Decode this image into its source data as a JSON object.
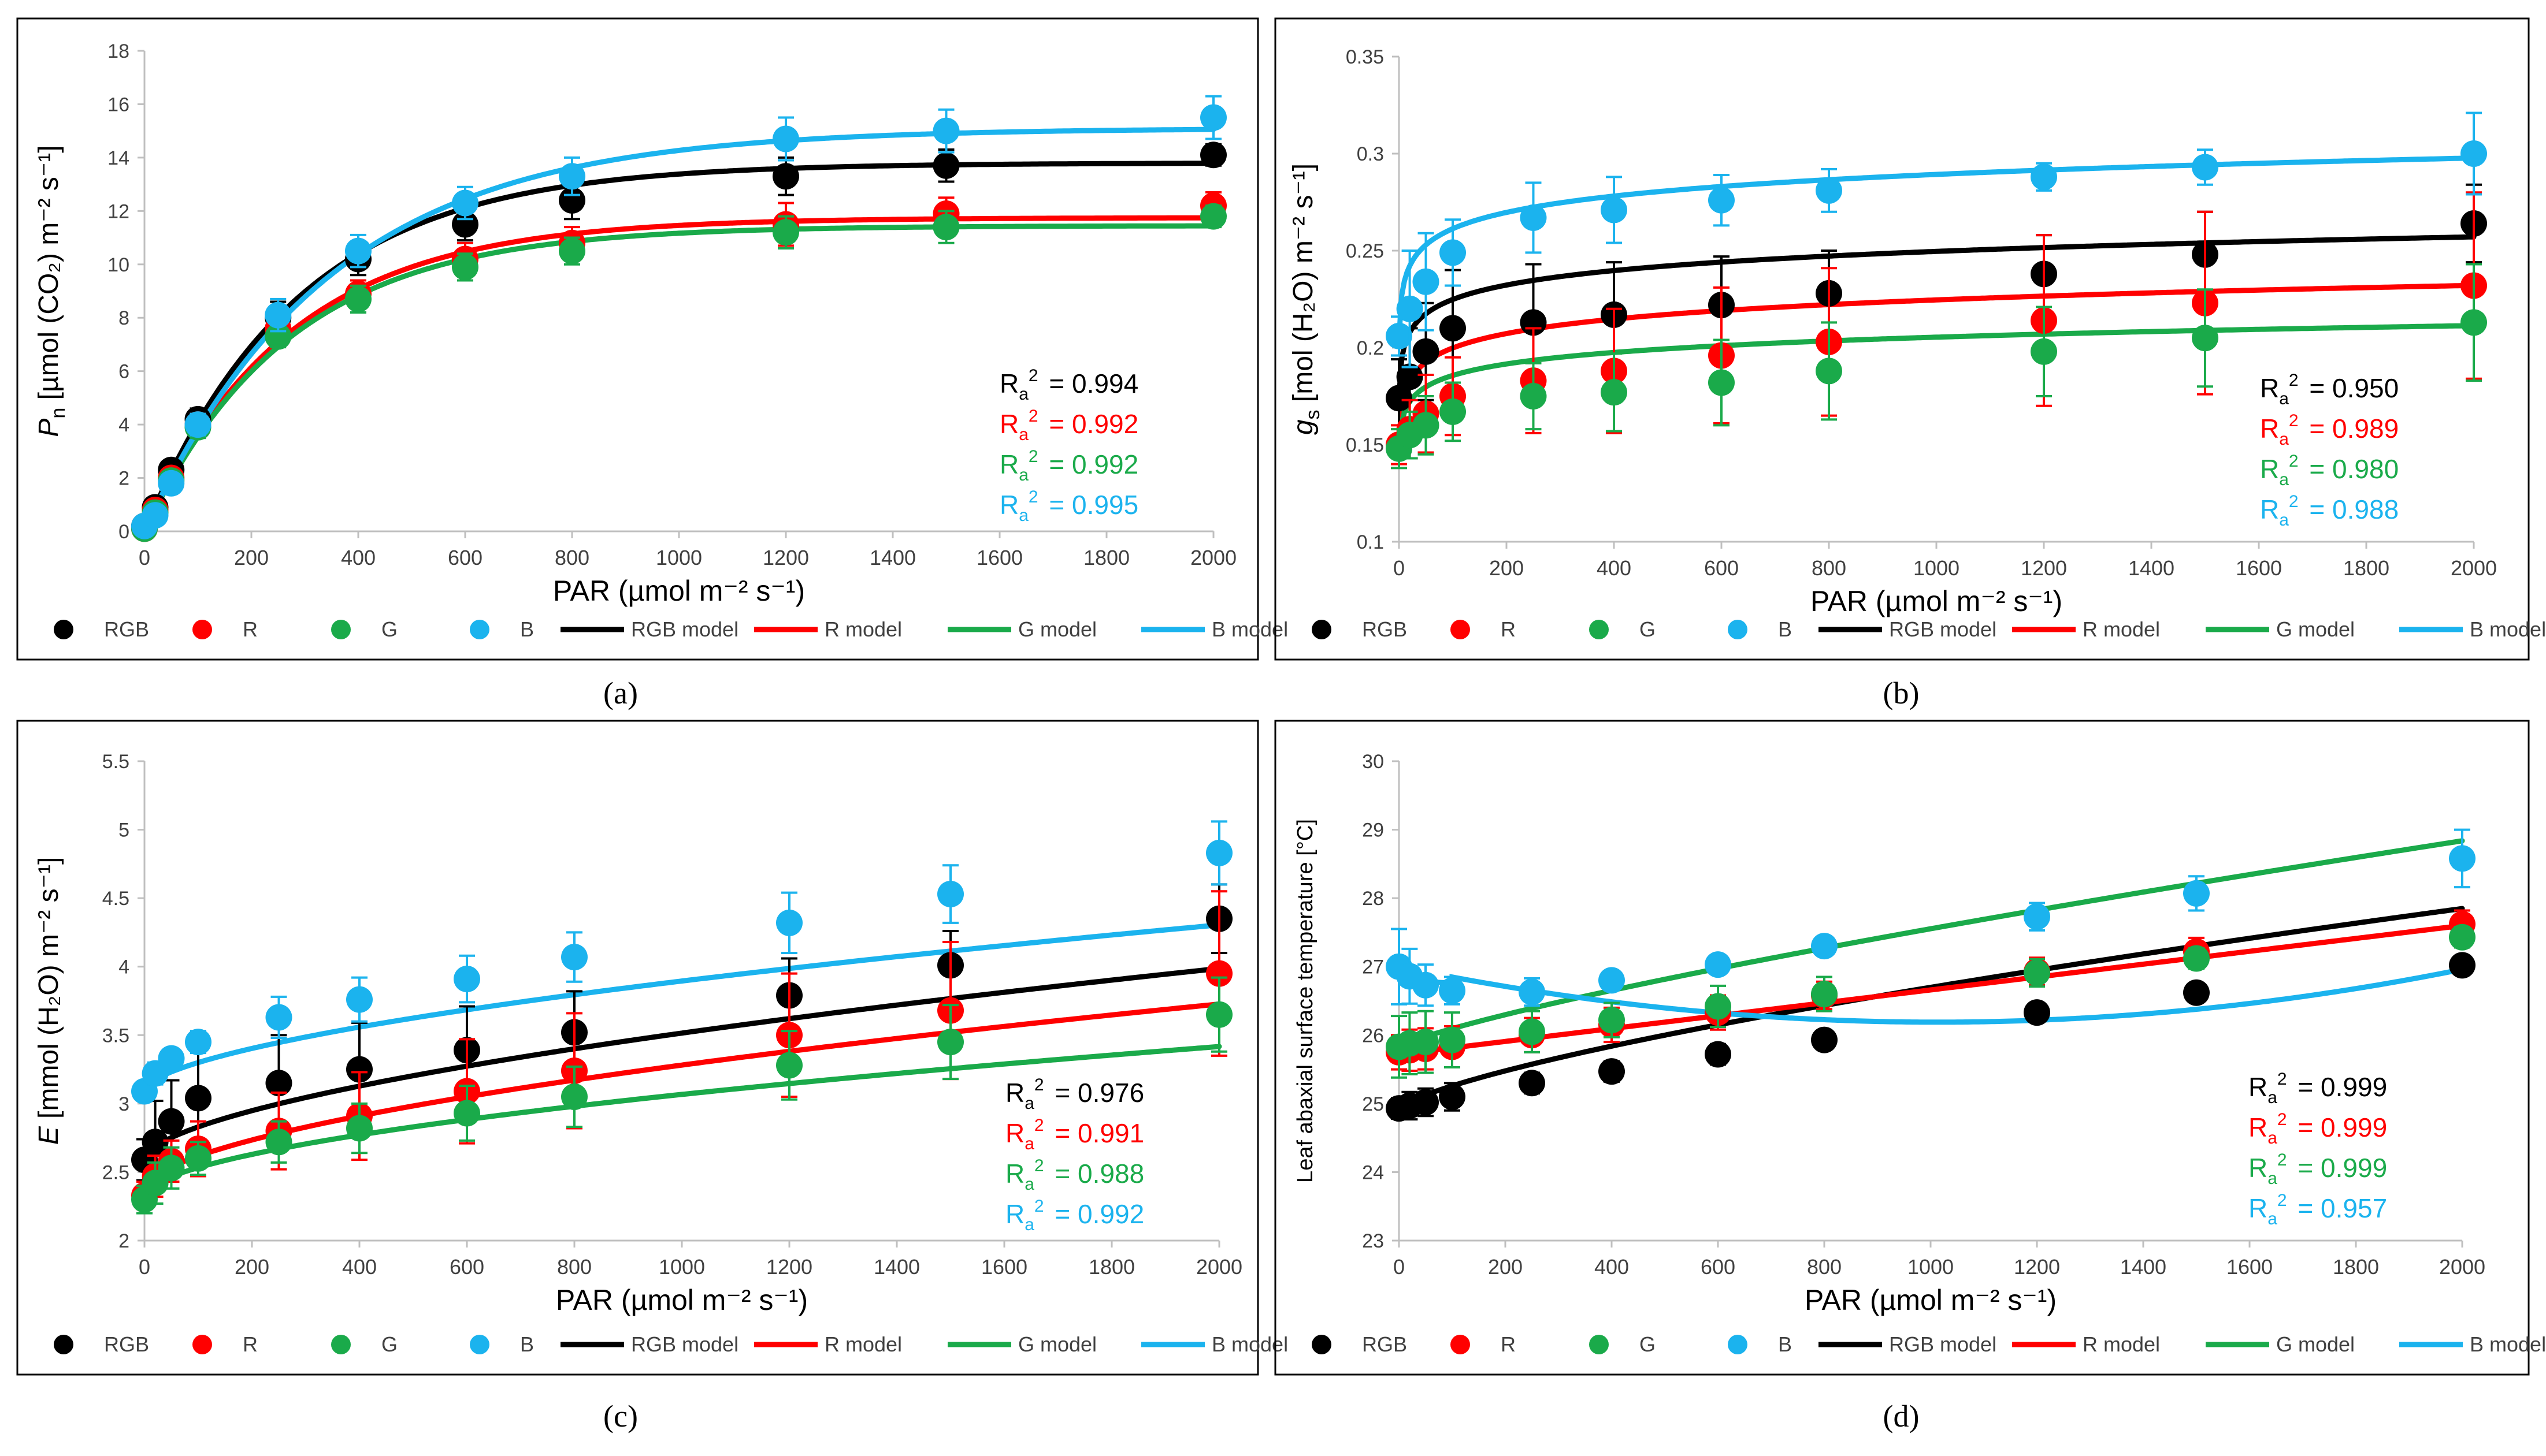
{
  "colors": {
    "RGB": "#000000",
    "R": "#ff0000",
    "G": "#1aaa4a",
    "B": "#1bb3ee"
  },
  "xlabel": "PAR (µmol m⁻² s⁻¹)",
  "legend": {
    "points": [
      "RGB",
      "R",
      "G",
      "B"
    ],
    "models": [
      "RGB model",
      "R model",
      "G model",
      "B model"
    ]
  },
  "chart_data": [
    {
      "type": "scatter",
      "panel_label": "(a)",
      "ylabel_var": "P",
      "ylabel_sub": "n",
      "ylabel_unit": "[µmol (CO₂) m⁻² s⁻¹]",
      "xlim": [
        0,
        2000
      ],
      "xticks": [
        0,
        200,
        400,
        600,
        800,
        1000,
        1200,
        1400,
        1600,
        1800,
        2000
      ],
      "ylim": [
        0,
        18
      ],
      "yticks": [
        "0",
        "2",
        "4",
        "6",
        "8",
        "10",
        "12",
        "14",
        "16",
        "18"
      ],
      "x": [
        0,
        20,
        50,
        100,
        250,
        400,
        600,
        800,
        1200,
        1500,
        2000
      ],
      "series": [
        {
          "name": "RGB",
          "y": [
            0.2,
            0.9,
            2.3,
            4.2,
            8.0,
            10.2,
            11.5,
            12.4,
            13.3,
            13.7,
            14.1
          ],
          "err": [
            0.2,
            0.3,
            0.3,
            0.4,
            0.6,
            0.6,
            0.6,
            0.7,
            0.7,
            0.6,
            0.4
          ],
          "model": {
            "kind": "exp",
            "a": 13.8,
            "k": 0.0035,
            "c": 13.8
          }
        },
        {
          "name": "R",
          "y": [
            0.1,
            0.8,
            2.0,
            4.0,
            7.6,
            8.9,
            10.2,
            10.8,
            11.5,
            11.9,
            12.2
          ],
          "err": [
            0.2,
            0.3,
            0.3,
            0.4,
            0.5,
            0.5,
            0.6,
            0.6,
            0.8,
            0.6,
            0.5
          ],
          "model": {
            "kind": "exp",
            "a": 11.75,
            "k": 0.0037,
            "c": 11.75
          }
        },
        {
          "name": "G",
          "y": [
            0.1,
            0.7,
            1.9,
            3.9,
            7.3,
            8.7,
            9.9,
            10.5,
            11.2,
            11.4,
            11.8
          ],
          "err": [
            0.2,
            0.3,
            0.3,
            0.4,
            0.4,
            0.5,
            0.5,
            0.5,
            0.6,
            0.6,
            0.4
          ],
          "model": {
            "kind": "exp",
            "a": 11.45,
            "k": 0.0037,
            "c": 11.45
          }
        },
        {
          "name": "B",
          "y": [
            0.2,
            0.6,
            1.8,
            4.0,
            8.1,
            10.5,
            12.3,
            13.3,
            14.7,
            15.0,
            15.5
          ],
          "err": [
            0.2,
            0.3,
            0.3,
            0.4,
            0.6,
            0.6,
            0.6,
            0.7,
            0.8,
            0.8,
            0.8
          ],
          "model": {
            "kind": "exp",
            "a": 15.1,
            "k": 0.0029,
            "c": 15.1
          }
        }
      ],
      "r2_prefix": "R",
      "r2_sub": "a",
      "r2_sup": "2",
      "r2": [
        "= 0.994",
        "= 0.992",
        "= 0.992",
        "= 0.995"
      ]
    },
    {
      "type": "scatter",
      "panel_label": "(b)",
      "ylabel_var": "g",
      "ylabel_sub": "s",
      "ylabel_unit": "[mol (H₂O) m⁻² s⁻¹]",
      "xlim": [
        0,
        2000
      ],
      "xticks": [
        0,
        200,
        400,
        600,
        800,
        1000,
        1200,
        1400,
        1600,
        1800,
        2000
      ],
      "ylim": [
        0.1,
        0.35
      ],
      "yticks": [
        "0.1",
        "0.15",
        "0.2",
        "0.25",
        "0.3",
        "0.35"
      ],
      "x": [
        0,
        20,
        50,
        100,
        250,
        400,
        600,
        800,
        1200,
        1500,
        2000
      ],
      "series": [
        {
          "name": "RGB",
          "y": [
            0.174,
            0.185,
            0.198,
            0.21,
            0.213,
            0.217,
            0.222,
            0.228,
            0.238,
            0.248,
            0.264
          ],
          "err": [
            0.02,
            0.025,
            0.025,
            0.03,
            0.03,
            0.027,
            0.025,
            0.022,
            0.02,
            0.022,
            0.02
          ],
          "model": {
            "kind": "log",
            "a": 0.175,
            "b": 0.0108,
            "s": 1
          }
        },
        {
          "name": "R",
          "y": [
            0.15,
            0.158,
            0.166,
            0.175,
            0.183,
            0.188,
            0.196,
            0.203,
            0.214,
            0.223,
            0.232
          ],
          "err": [
            0.01,
            0.015,
            0.02,
            0.02,
            0.027,
            0.032,
            0.035,
            0.038,
            0.044,
            0.047,
            0.048
          ],
          "model": {
            "kind": "log",
            "a": 0.15,
            "b": 0.0108,
            "s": 1
          }
        },
        {
          "name": "G",
          "y": [
            0.148,
            0.155,
            0.16,
            0.167,
            0.175,
            0.177,
            0.182,
            0.188,
            0.198,
            0.205,
            0.213
          ],
          "err": [
            0.01,
            0.012,
            0.015,
            0.015,
            0.017,
            0.02,
            0.022,
            0.025,
            0.023,
            0.025,
            0.03
          ],
          "model": {
            "kind": "log",
            "a": 0.146,
            "b": 0.0086,
            "s": 1
          }
        },
        {
          "name": "B",
          "y": [
            0.206,
            0.22,
            0.234,
            0.249,
            0.267,
            0.271,
            0.276,
            0.281,
            0.288,
            0.293,
            0.3
          ],
          "err": [
            0.01,
            0.03,
            0.025,
            0.017,
            0.018,
            0.017,
            0.013,
            0.011,
            0.007,
            0.009,
            0.021
          ],
          "model": {
            "kind": "log",
            "a": 0.205,
            "b": 0.0122,
            "s": 1
          }
        }
      ],
      "r2_prefix": "R",
      "r2_sub": "a",
      "r2_sup": "2",
      "r2": [
        "= 0.950",
        "= 0.989",
        "= 0.980",
        "= 0.988"
      ]
    },
    {
      "type": "scatter",
      "panel_label": "(c)",
      "ylabel_var": "E",
      "ylabel_sub": "",
      "ylabel_unit": "[mmol (H₂O) m⁻² s⁻¹]",
      "xlim": [
        0,
        2000
      ],
      "xticks": [
        0,
        200,
        400,
        600,
        800,
        1000,
        1200,
        1400,
        1600,
        1800,
        2000
      ],
      "ylim": [
        2,
        5.5
      ],
      "yticks": [
        "2",
        "2.5",
        "3",
        "3.5",
        "4",
        "4.5",
        "5",
        "5.5"
      ],
      "x": [
        0,
        20,
        50,
        100,
        250,
        400,
        600,
        800,
        1200,
        1500,
        2000
      ],
      "series": [
        {
          "name": "RGB",
          "y": [
            2.59,
            2.72,
            2.87,
            3.04,
            3.15,
            3.25,
            3.39,
            3.52,
            3.79,
            4.01,
            4.35
          ],
          "err": [
            0.15,
            0.3,
            0.3,
            0.35,
            0.35,
            0.34,
            0.32,
            0.3,
            0.27,
            0.25,
            0.25
          ],
          "model": {
            "kind": "pow",
            "a": 2.6,
            "b": 0.0145,
            "p": 0.6
          }
        },
        {
          "name": "R",
          "y": [
            2.33,
            2.47,
            2.58,
            2.67,
            2.8,
            2.91,
            3.09,
            3.24,
            3.5,
            3.68,
            3.95
          ],
          "err": [
            0.1,
            0.15,
            0.15,
            0.2,
            0.28,
            0.32,
            0.38,
            0.42,
            0.45,
            0.5,
            0.6
          ],
          "model": {
            "kind": "pow",
            "a": 2.38,
            "b": 0.0164,
            "p": 0.58
          }
        },
        {
          "name": "G",
          "y": [
            2.3,
            2.42,
            2.53,
            2.6,
            2.72,
            2.82,
            2.93,
            3.05,
            3.28,
            3.45,
            3.65
          ],
          "err": [
            0.1,
            0.15,
            0.15,
            0.12,
            0.15,
            0.18,
            0.2,
            0.22,
            0.25,
            0.27,
            0.27
          ],
          "model": {
            "kind": "pow",
            "a": 2.33,
            "b": 0.0154,
            "p": 0.56
          }
        },
        {
          "name": "B",
          "y": [
            3.09,
            3.22,
            3.33,
            3.45,
            3.63,
            3.76,
            3.91,
            4.07,
            4.32,
            4.53,
            4.83
          ],
          "err": [
            0.05,
            0.08,
            0.06,
            0.08,
            0.15,
            0.16,
            0.17,
            0.18,
            0.22,
            0.21,
            0.23
          ],
          "model": {
            "kind": "pow",
            "a": 3.1,
            "b": 0.0126,
            "p": 0.6
          }
        }
      ],
      "r2_prefix": "R",
      "r2_sub": "a",
      "r2_sup": "2",
      "r2": [
        "= 0.976",
        "= 0.991",
        "= 0.988",
        "= 0.992"
      ]
    },
    {
      "type": "scatter",
      "panel_label": "(d)",
      "ylabel_var": "",
      "ylabel_sub": "",
      "ylabel_unit": "Leaf abaxial surface temperature [°C]",
      "xlim": [
        0,
        2000
      ],
      "xticks": [
        0,
        200,
        400,
        600,
        800,
        1000,
        1200,
        1400,
        1600,
        1800,
        2000
      ],
      "ylim": [
        23,
        30
      ],
      "yticks": [
        "23",
        "24",
        "25",
        "26",
        "27",
        "28",
        "29",
        "30"
      ],
      "x": [
        0,
        20,
        50,
        100,
        250,
        400,
        600,
        800,
        1200,
        1500,
        2000
      ],
      "series": [
        {
          "name": "RGB",
          "y": [
            24.93,
            24.97,
            25.02,
            25.1,
            25.3,
            25.47,
            25.72,
            25.93,
            26.33,
            26.62,
            27.02
          ],
          "err": [
            0.15,
            0.2,
            0.2,
            0.2,
            0.15,
            0.15,
            0.15,
            0.1,
            0.08,
            0.08,
            0.08
          ],
          "model": {
            "kind": "pow",
            "a": 24.92,
            "b": 0.0123,
            "p": 0.72
          }
        },
        {
          "name": "R",
          "y": [
            25.75,
            25.78,
            25.8,
            25.83,
            26.0,
            26.15,
            26.33,
            26.58,
            26.93,
            27.22,
            27.62
          ],
          "err": [
            0.25,
            0.3,
            0.3,
            0.3,
            0.25,
            0.25,
            0.25,
            0.2,
            0.2,
            0.2,
            0.2
          ],
          "model": {
            "kind": "lin",
            "a": 25.72,
            "b": 0.00094
          }
        },
        {
          "name": "G",
          "y": [
            25.83,
            25.88,
            25.9,
            25.93,
            26.05,
            26.22,
            26.42,
            26.6,
            26.91,
            27.12,
            27.43
          ],
          "err": [
            0.45,
            0.45,
            0.45,
            0.4,
            0.3,
            0.25,
            0.3,
            0.25,
            0.2,
            0.15,
            0.15
          ],
          "model": {
            "kind": "pow",
            "a": 25.82,
            "b": 0.0069,
            "p": 0.8
          }
        },
        {
          "name": "B",
          "y": [
            27.0,
            26.86,
            26.73,
            26.65,
            26.63,
            26.8,
            27.03,
            27.3,
            27.73,
            28.07,
            28.58
          ],
          "err": [
            0.55,
            0.4,
            0.3,
            0.2,
            0.2,
            0.1,
            0.08,
            0.12,
            0.2,
            0.25,
            0.42
          ],
          "model": {
            "kind": "poly2",
            "a": 27.0,
            "b": -0.0016,
            "c": 7.9e-07,
            "lead": [
              [
                0,
                27.0
              ],
              [
                20,
                26.86
              ],
              [
                50,
                26.78
              ],
              [
                100,
                26.76
              ]
            ]
          }
        }
      ],
      "r2_prefix": "R",
      "r2_sub": "a",
      "r2_sup": "2",
      "r2": [
        "= 0.999",
        "= 0.999",
        "= 0.999",
        "= 0.957"
      ]
    }
  ]
}
